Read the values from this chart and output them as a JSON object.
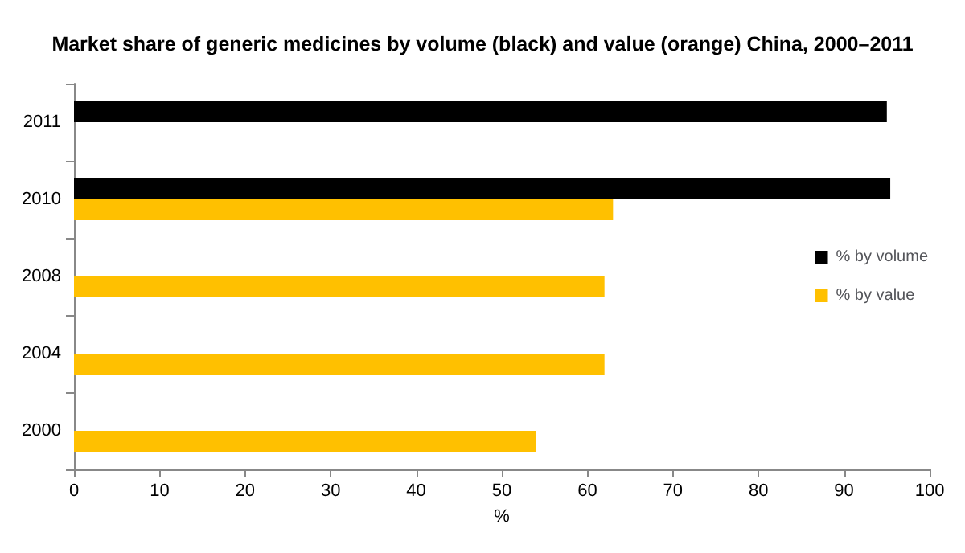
{
  "chart_data": {
    "type": "bar",
    "orientation": "horizontal",
    "title": "Market share of generic medicines by volume (black) and value (orange) China, 2000–2011",
    "xlabel": "%",
    "categories": [
      "2011",
      "2010",
      "2008",
      "2004",
      "2000"
    ],
    "series": [
      {
        "name": "% by volume",
        "color": "#000000",
        "values": [
          95,
          95.4,
          null,
          null,
          null
        ]
      },
      {
        "name": "% by value",
        "color": "#ffc000",
        "values": [
          null,
          63,
          62,
          62,
          54
        ]
      }
    ],
    "xlim": [
      0,
      100
    ],
    "xticks": [
      0,
      10,
      20,
      30,
      40,
      50,
      60,
      70,
      80,
      90,
      100
    ],
    "legend": "right",
    "grid": false
  }
}
